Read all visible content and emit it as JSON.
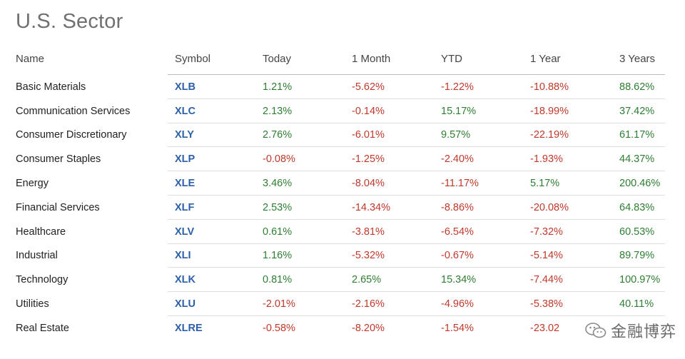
{
  "page": {
    "title": "U.S. Sector"
  },
  "table": {
    "columns": [
      "Name",
      "Symbol",
      "Today",
      "1 Month",
      "YTD",
      "1 Year",
      "3 Years"
    ],
    "rows": [
      {
        "name": "Basic Materials",
        "symbol": "XLB",
        "today": "1.21%",
        "month": "-5.62%",
        "ytd": "-1.22%",
        "year": "-10.88%",
        "three_years": "88.62%"
      },
      {
        "name": "Communication Services",
        "symbol": "XLC",
        "today": "2.13%",
        "month": "-0.14%",
        "ytd": "15.17%",
        "year": "-18.99%",
        "three_years": "37.42%"
      },
      {
        "name": "Consumer Discretionary",
        "symbol": "XLY",
        "today": "2.76%",
        "month": "-6.01%",
        "ytd": "9.57%",
        "year": "-22.19%",
        "three_years": "61.17%"
      },
      {
        "name": "Consumer Staples",
        "symbol": "XLP",
        "today": "-0.08%",
        "month": "-1.25%",
        "ytd": "-2.40%",
        "year": "-1.93%",
        "three_years": "44.37%"
      },
      {
        "name": "Energy",
        "symbol": "XLE",
        "today": "3.46%",
        "month": "-8.04%",
        "ytd": "-11.17%",
        "year": "5.17%",
        "three_years": "200.46%"
      },
      {
        "name": "Financial Services",
        "symbol": "XLF",
        "today": "2.53%",
        "month": "-14.34%",
        "ytd": "-8.86%",
        "year": "-20.08%",
        "three_years": "64.83%"
      },
      {
        "name": "Healthcare",
        "symbol": "XLV",
        "today": "0.61%",
        "month": "-3.81%",
        "ytd": "-6.54%",
        "year": "-7.32%",
        "three_years": "60.53%"
      },
      {
        "name": "Industrial",
        "symbol": "XLI",
        "today": "1.16%",
        "month": "-5.32%",
        "ytd": "-0.67%",
        "year": "-5.14%",
        "three_years": "89.79%"
      },
      {
        "name": "Technology",
        "symbol": "XLK",
        "today": "0.81%",
        "month": "2.65%",
        "ytd": "15.34%",
        "year": "-7.44%",
        "three_years": "100.97%"
      },
      {
        "name": "Utilities",
        "symbol": "XLU",
        "today": "-2.01%",
        "month": "-2.16%",
        "ytd": "-4.96%",
        "year": "-5.38%",
        "three_years": "40.11%"
      },
      {
        "name": "Real Estate",
        "symbol": "XLRE",
        "today": "-0.58%",
        "month": "-8.20%",
        "ytd": "-1.54%",
        "year": "-23.02",
        "three_years": ""
      }
    ]
  },
  "colors": {
    "positive": "#2e7d32",
    "negative": "#c0392b",
    "link": "#2d5fa8"
  },
  "watermark": {
    "text": "金融博弈",
    "icon": "wechat-icon"
  }
}
